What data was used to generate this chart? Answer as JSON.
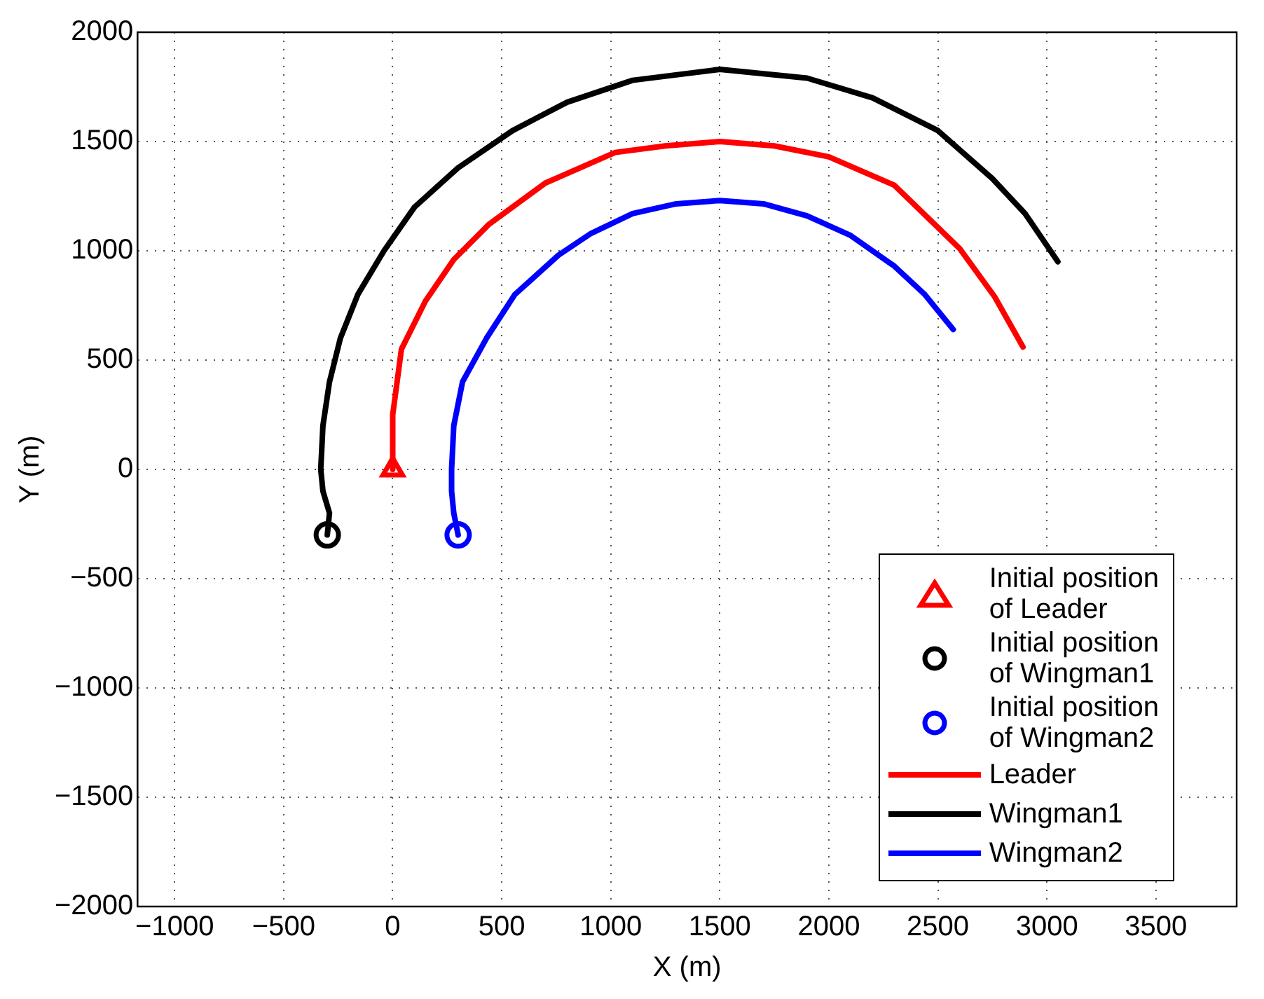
{
  "chart_data": {
    "type": "line",
    "xlabel": "X (m)",
    "ylabel": "Y (m)",
    "xlim": [
      -1170,
      3870
    ],
    "ylim": [
      -2000,
      2000
    ],
    "xticks": [
      -1000,
      -500,
      0,
      500,
      1000,
      1500,
      2000,
      2500,
      3000,
      3500
    ],
    "yticks": [
      -2000,
      -1500,
      -1000,
      -500,
      0,
      500,
      1000,
      1500,
      2000
    ],
    "grid": true,
    "legend": "bottom right",
    "line_style": "solid",
    "series": [
      {
        "name": "Initial position\nof Leader",
        "type": "scatter",
        "marker": "triangle",
        "color": "#ff0000",
        "x": [
          0
        ],
        "values": [
          0
        ]
      },
      {
        "name": "Initial position\nof Wingman1",
        "type": "scatter",
        "marker": "circle",
        "color": "#000000",
        "x": [
          -300
        ],
        "values": [
          -300
        ]
      },
      {
        "name": "Initial position\nof Wingman2",
        "type": "scatter",
        "marker": "circle",
        "color": "#0000ff",
        "x": [
          300
        ],
        "values": [
          -300
        ]
      },
      {
        "name": "Leader",
        "type": "line",
        "marker": "none",
        "color": "#ff0000",
        "x": [
          0,
          0,
          40,
          150,
          280,
          440,
          700,
          1020,
          1250,
          1500,
          1750,
          2000,
          2300,
          2600,
          2760,
          2890
        ],
        "values": [
          0,
          250,
          550,
          770,
          960,
          1120,
          1310,
          1450,
          1480,
          1500,
          1480,
          1430,
          1300,
          1010,
          790,
          560
        ]
      },
      {
        "name": "Wingman1",
        "type": "line",
        "marker": "none",
        "color": "#000000",
        "x": [
          -300,
          -290,
          -320,
          -330,
          -320,
          -290,
          -240,
          -160,
          -40,
          100,
          300,
          550,
          800,
          1100,
          1500,
          1900,
          2200,
          2500,
          2750,
          2900,
          3050
        ],
        "values": [
          -300,
          -200,
          -100,
          0,
          200,
          400,
          600,
          800,
          1000,
          1200,
          1380,
          1550,
          1680,
          1780,
          1830,
          1790,
          1700,
          1550,
          1330,
          1170,
          950
        ]
      },
      {
        "name": "Wingman2",
        "type": "line",
        "marker": "none",
        "color": "#0000ff",
        "x": [
          300,
          280,
          270,
          270,
          280,
          320,
          430,
          560,
          760,
          910,
          1100,
          1300,
          1500,
          1700,
          1900,
          2100,
          2300,
          2440,
          2570
        ],
        "values": [
          -300,
          -200,
          -100,
          0,
          200,
          400,
          600,
          800,
          980,
          1080,
          1170,
          1215,
          1230,
          1215,
          1160,
          1070,
          930,
          800,
          640
        ]
      }
    ]
  }
}
